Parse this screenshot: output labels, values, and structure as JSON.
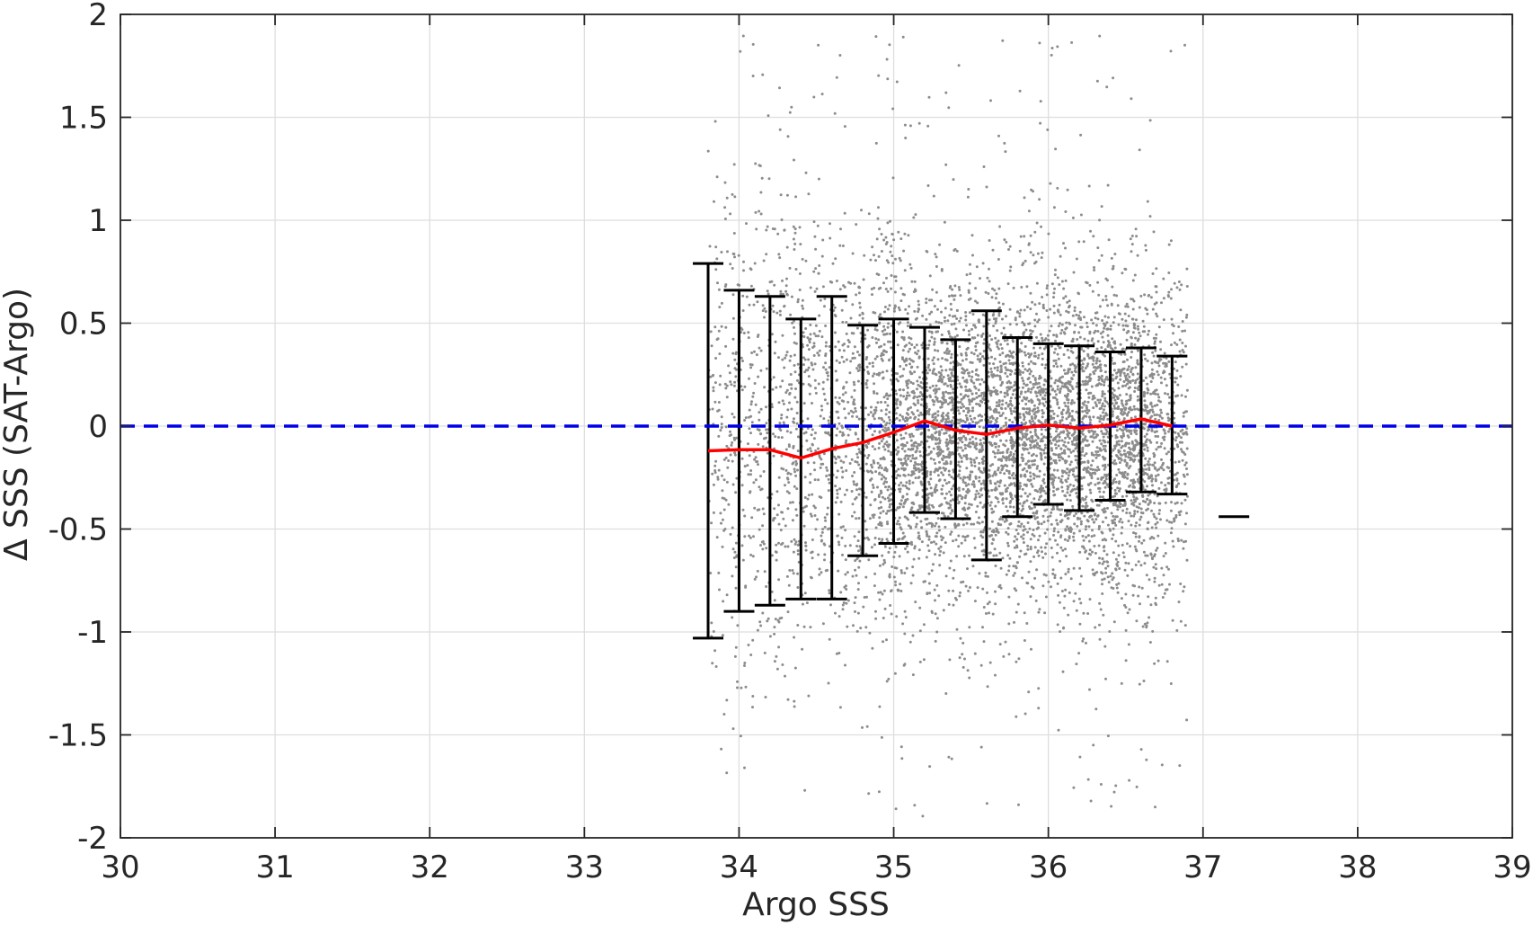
{
  "chart_data": {
    "type": "scatter",
    "title": "",
    "xlabel": "Argo SSS",
    "ylabel": "Δ SSS (SAT-Argo)",
    "xlim": [
      30,
      39
    ],
    "ylim": [
      -2,
      2
    ],
    "xticks": [
      30,
      31,
      32,
      33,
      34,
      35,
      36,
      37,
      38,
      39
    ],
    "yticks": [
      -2,
      -1.5,
      -1,
      -0.5,
      0,
      0.5,
      1,
      1.5,
      2
    ],
    "ytick_labels": [
      "-2",
      "-1.5",
      "-1",
      "-0.5",
      "0",
      "0.5",
      "1",
      "1.5",
      "2"
    ],
    "grid": true,
    "legend": "none",
    "colors": {
      "scatter": "#8c8c8c",
      "mean_line": "#ff0000",
      "zero_line": "#0000e6",
      "error_bars": "#000000",
      "grid": "#dedede",
      "axes": "#262626"
    },
    "scatter_region": {
      "x_range": [
        33.8,
        36.9
      ],
      "y_mean": -0.03,
      "y_std": 0.45,
      "note_points": "dense cloud of individual matchup points"
    },
    "series": [
      {
        "type": "errorbar",
        "x": [
          33.8,
          34.0,
          34.2,
          34.4,
          34.6,
          34.8,
          35.0,
          35.2,
          35.4,
          35.6,
          35.8,
          36.0,
          36.2,
          36.4,
          36.6,
          36.8,
          37.2
        ],
        "upper": [
          0.79,
          0.66,
          0.63,
          0.52,
          0.63,
          0.49,
          0.52,
          0.48,
          0.42,
          0.56,
          0.43,
          0.4,
          0.39,
          0.36,
          0.38,
          0.34,
          -0.44
        ],
        "lower": [
          -1.03,
          -0.9,
          -0.87,
          -0.84,
          -0.84,
          -0.63,
          -0.57,
          -0.42,
          -0.45,
          -0.65,
          -0.44,
          -0.38,
          -0.41,
          -0.36,
          -0.32,
          -0.33,
          -0.44
        ]
      },
      {
        "type": "line",
        "x": [
          33.8,
          34.0,
          34.2,
          34.4,
          34.6,
          34.8,
          35.0,
          35.2,
          35.4,
          35.6,
          35.8,
          36.0,
          36.2,
          36.4,
          36.6,
          36.8
        ],
        "y": [
          -0.12,
          -0.115,
          -0.115,
          -0.155,
          -0.11,
          -0.08,
          -0.03,
          0.025,
          -0.02,
          -0.04,
          -0.01,
          0.005,
          -0.01,
          0.005,
          0.035,
          0.0
        ]
      },
      {
        "type": "reference-line",
        "y": 0,
        "style": "dashed"
      }
    ]
  }
}
